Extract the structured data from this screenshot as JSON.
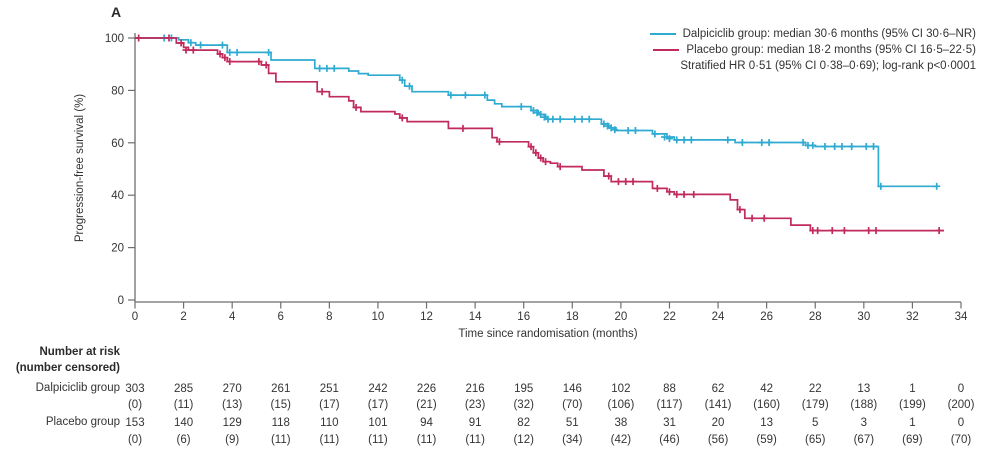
{
  "panel_label": "A",
  "legend": {
    "dalpiciclib": "Dalpiciclib group: median 30·6 months (95% CI 30·6–NR)",
    "placebo": "Placebo group: median 18·2 months (95% CI 16·5–22·5)",
    "stats": "Stratified HR 0·51 (95% CI 0·38–0·69); log-rank p<0·0001"
  },
  "colors": {
    "dalpiciclib": "#2fabd2",
    "placebo": "#c02a5c",
    "axis": "#6d6e71",
    "text": "#353535"
  },
  "chart_data": {
    "type": "line",
    "subtype": "kaplan-meier-step",
    "title": "",
    "xlabel": "Time since randomisation (months)",
    "ylabel": "Progression-free survival (%)",
    "xlim": [
      0,
      34
    ],
    "ylim": [
      0,
      100
    ],
    "xticks": [
      0,
      2,
      4,
      6,
      8,
      10,
      12,
      14,
      16,
      18,
      20,
      22,
      24,
      26,
      28,
      30,
      32,
      34
    ],
    "yticks": [
      0,
      20,
      40,
      60,
      80,
      100
    ],
    "grid": false,
    "legend_position": "top-right",
    "series": [
      {
        "name": "Dalpiciclib group",
        "median_months": "30·6",
        "ci": "30·6–NR",
        "color_key": "dalpiciclib",
        "steps": [
          [
            0,
            100
          ],
          [
            1.8,
            99.3
          ],
          [
            2.2,
            98.2
          ],
          [
            2.5,
            97.3
          ],
          [
            3.8,
            94.5
          ],
          [
            5.6,
            91.6
          ],
          [
            7.4,
            88.4
          ],
          [
            8.8,
            87.4
          ],
          [
            9.2,
            86.4
          ],
          [
            9.6,
            85.8
          ],
          [
            10.9,
            83.9
          ],
          [
            11.1,
            81.6
          ],
          [
            11.4,
            79.5
          ],
          [
            12.9,
            78.2
          ],
          [
            14.5,
            76.3
          ],
          [
            14.8,
            74.9
          ],
          [
            15.1,
            73.8
          ],
          [
            16.3,
            72.3
          ],
          [
            16.6,
            70.8
          ],
          [
            16.9,
            69.0
          ],
          [
            19.2,
            67.2
          ],
          [
            19.5,
            65.7
          ],
          [
            19.8,
            64.7
          ],
          [
            21.3,
            63.4
          ],
          [
            21.9,
            62.2
          ],
          [
            22.2,
            61.1
          ],
          [
            24.7,
            60.1
          ],
          [
            27.6,
            59.0
          ],
          [
            28.0,
            58.6
          ],
          [
            30.6,
            43.4
          ],
          [
            33.0,
            43.4
          ]
        ],
        "censors": [
          [
            1.2,
            100
          ],
          [
            1.5,
            100
          ],
          [
            2.3,
            98.2
          ],
          [
            2.7,
            97.3
          ],
          [
            3.6,
            97.3
          ],
          [
            3.9,
            94.5
          ],
          [
            4.2,
            94.5
          ],
          [
            5.5,
            94.5
          ],
          [
            7.6,
            88.4
          ],
          [
            7.9,
            88.4
          ],
          [
            8.2,
            88.4
          ],
          [
            11.0,
            83.9
          ],
          [
            11.3,
            81.6
          ],
          [
            13.0,
            78.2
          ],
          [
            13.6,
            78.2
          ],
          [
            14.4,
            78.2
          ],
          [
            15.9,
            73.8
          ],
          [
            16.4,
            72.3
          ],
          [
            16.55,
            71.5
          ],
          [
            16.7,
            70.8
          ],
          [
            16.85,
            69.8
          ],
          [
            17.0,
            69.0
          ],
          [
            17.2,
            69.0
          ],
          [
            17.5,
            69.0
          ],
          [
            18.1,
            69.0
          ],
          [
            18.4,
            69.0
          ],
          [
            18.7,
            69.0
          ],
          [
            19.3,
            67.2
          ],
          [
            19.45,
            66.4
          ],
          [
            19.6,
            65.7
          ],
          [
            19.75,
            65.0
          ],
          [
            20.3,
            64.7
          ],
          [
            20.6,
            64.7
          ],
          [
            21.4,
            63.4
          ],
          [
            21.8,
            62.2
          ],
          [
            22.0,
            61.6
          ],
          [
            22.3,
            61.1
          ],
          [
            22.6,
            61.1
          ],
          [
            22.9,
            61.1
          ],
          [
            24.4,
            61.1
          ],
          [
            25.0,
            60.1
          ],
          [
            25.8,
            60.1
          ],
          [
            26.1,
            60.1
          ],
          [
            27.5,
            60.1
          ],
          [
            27.7,
            59.0
          ],
          [
            27.9,
            59.0
          ],
          [
            28.4,
            58.6
          ],
          [
            28.8,
            58.6
          ],
          [
            29.1,
            58.6
          ],
          [
            29.5,
            58.6
          ],
          [
            30.1,
            58.6
          ],
          [
            30.4,
            58.6
          ],
          [
            30.7,
            43.4
          ],
          [
            33.0,
            43.4
          ]
        ]
      },
      {
        "name": "Placebo group",
        "median_months": "18·2",
        "ci": "16·5–22·5",
        "color_key": "placebo",
        "steps": [
          [
            0,
            100
          ],
          [
            1.7,
            98.1
          ],
          [
            2.0,
            96.4
          ],
          [
            2.2,
            95.4
          ],
          [
            3.4,
            93.9
          ],
          [
            3.6,
            92.5
          ],
          [
            3.8,
            91.0
          ],
          [
            5.2,
            89.7
          ],
          [
            5.5,
            86.5
          ],
          [
            5.8,
            83.3
          ],
          [
            7.5,
            79.5
          ],
          [
            8.0,
            77.6
          ],
          [
            8.8,
            76.0
          ],
          [
            9.0,
            73.5
          ],
          [
            9.3,
            71.9
          ],
          [
            10.7,
            71.0
          ],
          [
            10.9,
            69.5
          ],
          [
            11.2,
            68.1
          ],
          [
            12.9,
            65.5
          ],
          [
            14.7,
            62.0
          ],
          [
            14.9,
            60.4
          ],
          [
            16.2,
            58.5
          ],
          [
            16.4,
            56.2
          ],
          [
            16.6,
            54.2
          ],
          [
            16.8,
            52.8
          ],
          [
            17.1,
            52.2
          ],
          [
            17.4,
            50.9
          ],
          [
            18.4,
            49.6
          ],
          [
            19.3,
            47.3
          ],
          [
            19.6,
            45.2
          ],
          [
            21.3,
            42.6
          ],
          [
            21.9,
            41.3
          ],
          [
            22.2,
            40.3
          ],
          [
            24.5,
            38.2
          ],
          [
            24.8,
            34.5
          ],
          [
            25.1,
            31.2
          ],
          [
            27.0,
            28.6
          ],
          [
            27.8,
            26.5
          ],
          [
            33.3,
            26.5
          ]
        ],
        "censors": [
          [
            0.15,
            100
          ],
          [
            1.4,
            100
          ],
          [
            1.9,
            98.1
          ],
          [
            2.1,
            95.4
          ],
          [
            2.4,
            95.4
          ],
          [
            3.5,
            93.9
          ],
          [
            3.7,
            92.5
          ],
          [
            3.9,
            91.0
          ],
          [
            5.1,
            91.0
          ],
          [
            5.4,
            89.7
          ],
          [
            7.7,
            79.5
          ],
          [
            9.1,
            73.5
          ],
          [
            11.0,
            69.5
          ],
          [
            13.5,
            65.5
          ],
          [
            15.0,
            60.4
          ],
          [
            16.3,
            58.5
          ],
          [
            16.5,
            56.2
          ],
          [
            16.7,
            54.2
          ],
          [
            16.9,
            52.8
          ],
          [
            17.5,
            50.9
          ],
          [
            19.5,
            47.3
          ],
          [
            19.9,
            45.2
          ],
          [
            20.2,
            45.2
          ],
          [
            20.5,
            45.2
          ],
          [
            21.5,
            42.6
          ],
          [
            22.0,
            41.3
          ],
          [
            22.3,
            40.3
          ],
          [
            22.6,
            40.3
          ],
          [
            23.0,
            40.3
          ],
          [
            24.9,
            34.5
          ],
          [
            25.4,
            31.2
          ],
          [
            25.9,
            31.2
          ],
          [
            27.9,
            26.5
          ],
          [
            28.1,
            26.5
          ],
          [
            28.7,
            26.5
          ],
          [
            29.2,
            26.5
          ],
          [
            30.2,
            26.5
          ],
          [
            30.5,
            26.5
          ],
          [
            33.1,
            26.5
          ]
        ]
      }
    ]
  },
  "risk_table": {
    "header_line1": "Number at risk",
    "header_line2": "(number censored)",
    "timepoints": [
      0,
      2,
      4,
      6,
      8,
      10,
      12,
      14,
      16,
      18,
      20,
      22,
      24,
      26,
      28,
      30,
      32,
      34
    ],
    "rows": [
      {
        "label": "Dalpiciclib group",
        "at_risk": [
          "303",
          "285",
          "270",
          "261",
          "251",
          "242",
          "226",
          "216",
          "195",
          "146",
          "102",
          "88",
          "62",
          "42",
          "22",
          "13",
          "1",
          "0"
        ],
        "censored": [
          "(0)",
          "(11)",
          "(13)",
          "(15)",
          "(17)",
          "(17)",
          "(21)",
          "(23)",
          "(32)",
          "(70)",
          "(106)",
          "(117)",
          "(141)",
          "(160)",
          "(179)",
          "(188)",
          "(199)",
          "(200)"
        ]
      },
      {
        "label": "Placebo group",
        "at_risk": [
          "153",
          "140",
          "129",
          "118",
          "110",
          "101",
          "94",
          "91",
          "82",
          "51",
          "38",
          "31",
          "20",
          "13",
          "5",
          "3",
          "1",
          "0"
        ],
        "censored": [
          "(0)",
          "(6)",
          "(9)",
          "(11)",
          "(11)",
          "(11)",
          "(11)",
          "(11)",
          "(12)",
          "(34)",
          "(42)",
          "(46)",
          "(56)",
          "(59)",
          "(65)",
          "(67)",
          "(69)",
          "(70)"
        ]
      }
    ]
  }
}
